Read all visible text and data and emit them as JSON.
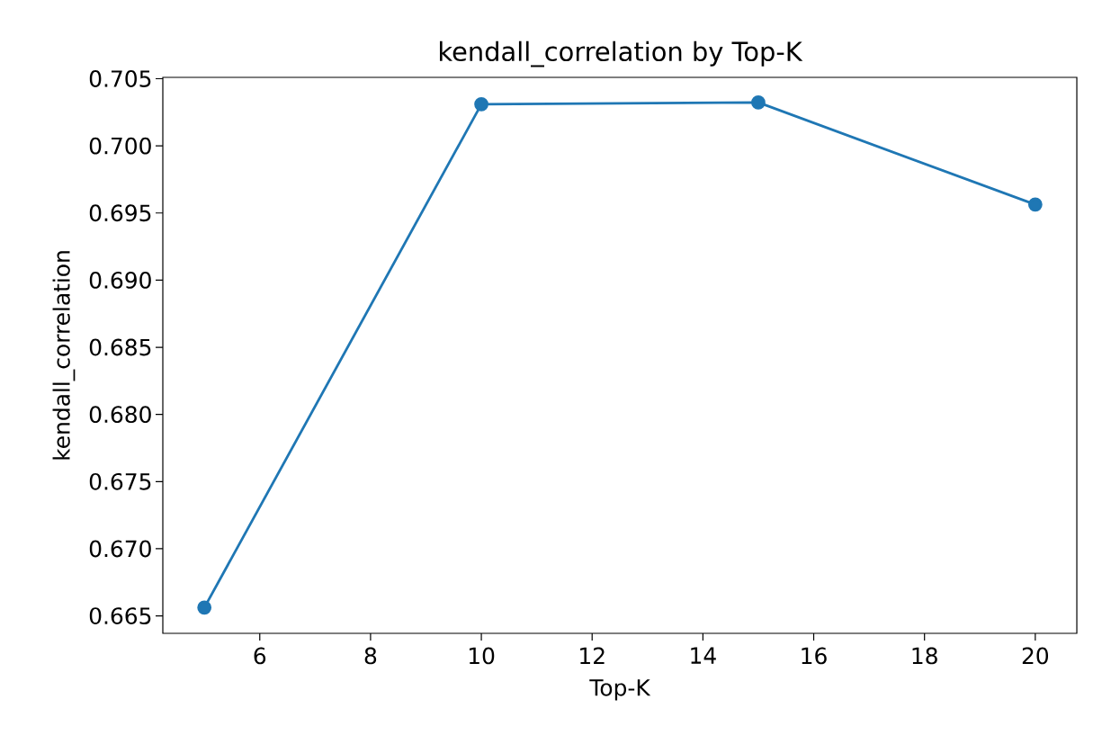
{
  "chart_data": {
    "type": "line",
    "title": "kendall_correlation by Top-K",
    "xlabel": "Top-K",
    "ylabel": "kendall_correlation",
    "x": [
      5,
      10,
      15,
      20
    ],
    "series": [
      {
        "color": "#1f77b4",
        "values": [
          0.66562,
          0.7031,
          0.70323,
          0.69563
        ]
      }
    ],
    "xlim": [
      4.25,
      20.75
    ],
    "ylim": [
      0.6637,
      0.7051
    ],
    "xticks": [
      6,
      8,
      10,
      12,
      14,
      16,
      18,
      20
    ],
    "yticks": [
      {
        "value": 0.665,
        "label": "0.665"
      },
      {
        "value": 0.67,
        "label": "0.670"
      },
      {
        "value": 0.675,
        "label": "0.675"
      },
      {
        "value": 0.68,
        "label": "0.680"
      },
      {
        "value": 0.685,
        "label": "0.685"
      },
      {
        "value": 0.69,
        "label": "0.690"
      },
      {
        "value": 0.695,
        "label": "0.695"
      },
      {
        "value": 0.7,
        "label": "0.700"
      },
      {
        "value": 0.705,
        "label": "0.705"
      }
    ],
    "marker": "circle",
    "line_style": "solid",
    "grid": false
  }
}
